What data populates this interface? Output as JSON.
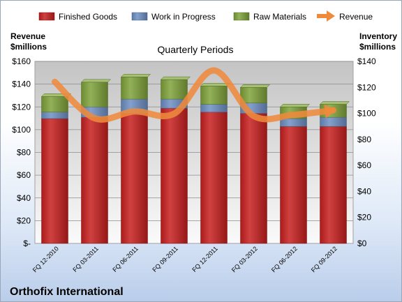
{
  "chart_data": {
    "type": "bar",
    "title": "Quarterly Periods",
    "company": "Orthofix International",
    "left_axis_title": [
      "Revenue",
      "$millions"
    ],
    "right_axis_title": [
      "Inventory",
      "$millions"
    ],
    "categories": [
      "FQ 12-2010",
      "FQ 03-2011",
      "FQ 06-2011",
      "FQ 09-2011",
      "FQ 12-2011",
      "FQ 03-2012",
      "FQ 06-2012",
      "FQ 09-2012"
    ],
    "left_ticks": [
      "$-",
      "$20",
      "$40",
      "$60",
      "$80",
      "$100",
      "$120",
      "$140",
      "$160"
    ],
    "right_ticks": [
      "$0",
      "$20",
      "$40",
      "$60",
      "$80",
      "$100",
      "$120",
      "$140"
    ],
    "left_ylim": [
      0,
      160
    ],
    "right_ylim": [
      0,
      140
    ],
    "series": [
      {
        "name": "Finished Goods",
        "color": "#c8201f",
        "axis": "right",
        "values": [
          96,
          97,
          100,
          104,
          101,
          100,
          90,
          90
        ]
      },
      {
        "name": "Work in Progress",
        "color": "#6d8fc4",
        "axis": "right",
        "values": [
          5,
          8,
          11,
          7,
          6,
          8,
          6,
          7
        ]
      },
      {
        "name": "Raw Materials",
        "color": "#7fa33a",
        "axis": "right",
        "values": [
          12,
          19,
          17,
          15,
          14,
          12,
          9,
          10
        ]
      }
    ],
    "line": {
      "name": "Revenue",
      "color": "#ee8a3c",
      "axis": "left",
      "values": [
        142,
        110,
        116,
        114,
        152,
        112,
        113,
        117
      ]
    },
    "legend_position": "top",
    "grid": true
  }
}
